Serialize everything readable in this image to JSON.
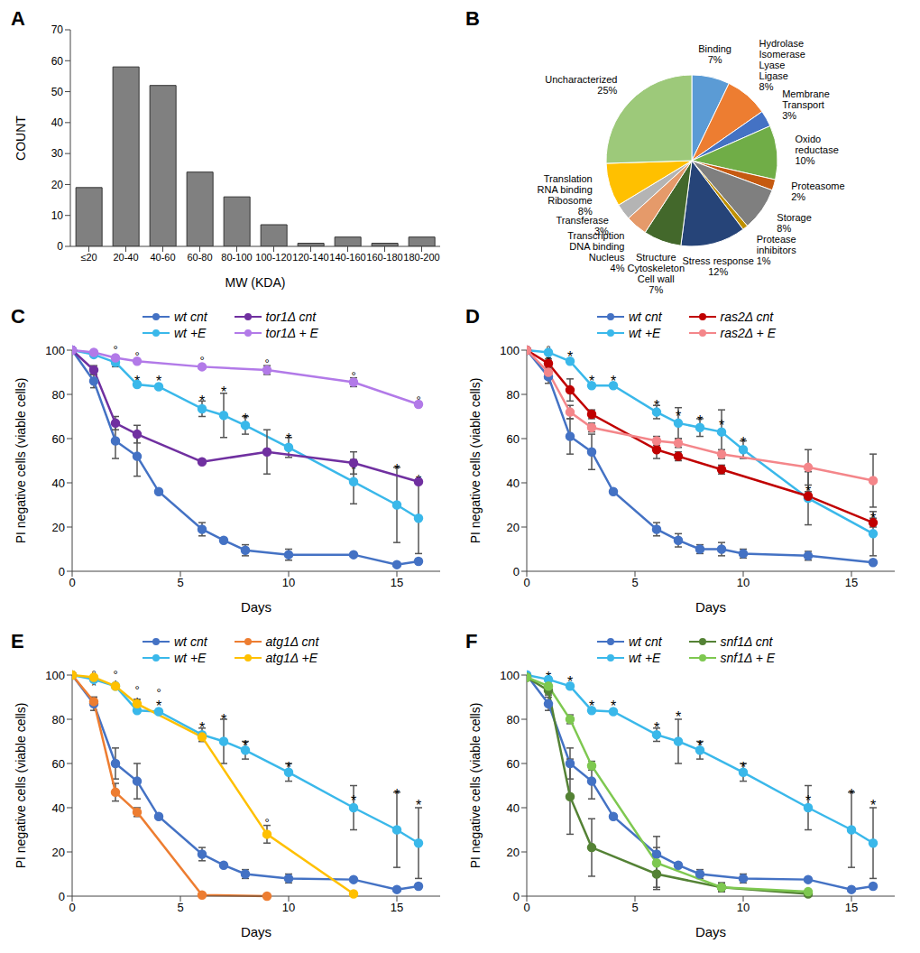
{
  "chart_data": [
    {
      "title": "A",
      "type": "bar",
      "xlabel": "MW (KDA)",
      "ylabel": "COUNT",
      "categories": [
        "≤20",
        "20-40",
        "40-60",
        "60-80",
        "80-100",
        "100-120",
        "120-140",
        "140-160",
        "160-180",
        "180-200"
      ],
      "values": [
        19,
        58,
        52,
        24,
        16,
        7,
        1,
        3,
        1,
        3
      ],
      "color": "#808080",
      "ylim": [
        0,
        70
      ],
      "yticks": [
        0,
        10,
        20,
        30,
        40,
        50,
        60,
        70
      ],
      "grid": false
    },
    {
      "title": "B",
      "type": "pie",
      "categories": [
        "Binding",
        "Hydrolase\nIsomerase\nLyase\nLigase",
        "Membrane\nTransport",
        "Oxido\nreductase",
        "Proteasome",
        "Storage",
        "Protease\ninhibitors",
        "Stress response",
        "Structure\nCytoskeleton\nCell wall",
        "Transcription\nDNA binding\nNucleus",
        "Transferase",
        "Translation\nRNA binding\nRibosome",
        "Uncharacterized"
      ],
      "values": [
        7,
        8,
        3,
        10,
        2,
        8,
        1,
        12,
        7,
        4,
        3,
        8,
        25
      ],
      "value_labels": [
        "7%",
        "8%",
        "3%",
        "10%",
        "2%",
        "8%",
        "1%",
        "12%",
        "7%",
        "4%",
        "3%",
        "8%",
        "25%"
      ],
      "colors": [
        "#5b9bd5",
        "#ed7d31",
        "#4472c4",
        "#70ad47",
        "#c55a11",
        "#7f7f7f",
        "#bf9000",
        "#264478",
        "#43682b",
        "#e59a6a",
        "#b4b4b4",
        "#ffc000",
        "#9dc97a"
      ],
      "data_labels": true
    },
    {
      "title": "C",
      "type": "line",
      "xlabel": "Days",
      "ylabel": "PI negative cells (viable cells)",
      "xlim": [
        0,
        17
      ],
      "xticks": [
        0,
        5,
        10,
        15
      ],
      "ylim": [
        0,
        100
      ],
      "yticks": [
        0,
        20,
        40,
        60,
        80,
        100
      ],
      "legend": "top",
      "marker": "circle",
      "series": [
        {
          "name": "wt cnt",
          "color": "#4472c4",
          "x": [
            0,
            1,
            2,
            3,
            4,
            6,
            7,
            8,
            10,
            13,
            15,
            16
          ],
          "values": [
            100,
            86,
            59,
            52,
            36,
            19,
            14,
            9.5,
            7.5,
            7.5,
            3,
            4.5
          ],
          "errors": [
            0,
            3,
            8,
            9,
            1,
            3,
            1,
            2.5,
            2.5,
            1,
            1,
            1
          ]
        },
        {
          "name": "wt +E",
          "color": "#3ab8ea",
          "x": [
            0,
            1,
            2,
            3,
            4,
            6,
            7,
            8,
            10,
            13,
            15,
            16
          ],
          "values": [
            100,
            98,
            94.5,
            84.5,
            83.5,
            73.5,
            70.5,
            66,
            56,
            40.5,
            30,
            24
          ],
          "errors": [
            0,
            1,
            2,
            1,
            1,
            3.5,
            10,
            4,
            4.5,
            10,
            17,
            16
          ]
        },
        {
          "name": "tor1Δ cnt",
          "color": "#7030a0",
          "x": [
            0,
            1,
            2,
            3,
            6,
            9,
            13,
            16
          ],
          "values": [
            100,
            91,
            67,
            62,
            49.5,
            54,
            49,
            40.5
          ],
          "errors": [
            0,
            2,
            3,
            4,
            1,
            10,
            5,
            1
          ]
        },
        {
          "name": "tor1Δ + E",
          "color": "#b27ae8",
          "x": [
            0,
            1,
            2,
            3,
            6,
            9,
            13,
            16
          ],
          "values": [
            100,
            99,
            96.5,
            95,
            92.5,
            91,
            85.5,
            75.5
          ],
          "errors": [
            0,
            1,
            1,
            1,
            1,
            2,
            2,
            1
          ]
        }
      ],
      "annotations": [
        {
          "x": 1,
          "y": 99,
          "text": "*"
        },
        {
          "x": 2,
          "y": 100,
          "text": "°"
        },
        {
          "x": 2,
          "y": 96,
          "text": "*"
        },
        {
          "x": 3,
          "y": 97,
          "text": "°"
        },
        {
          "x": 3,
          "y": 87,
          "text": "*"
        },
        {
          "x": 4,
          "y": 87,
          "text": "*"
        },
        {
          "x": 6,
          "y": 95,
          "text": "°"
        },
        {
          "x": 6,
          "y": 78,
          "text": "*"
        },
        {
          "x": 7,
          "y": 82,
          "text": "*"
        },
        {
          "x": 8,
          "y": 70,
          "text": "*"
        },
        {
          "x": 9,
          "y": 94,
          "text": "°"
        },
        {
          "x": 10,
          "y": 61,
          "text": "*"
        },
        {
          "x": 13,
          "y": 88,
          "text": "°"
        },
        {
          "x": 13,
          "y": 47,
          "text": "*"
        },
        {
          "x": 15,
          "y": 47,
          "text": "*"
        },
        {
          "x": 16,
          "y": 77,
          "text": "°"
        },
        {
          "x": 16,
          "y": 42,
          "text": "*"
        }
      ]
    },
    {
      "title": "D",
      "type": "line",
      "xlabel": "Days",
      "ylabel": "PI negative cells (viable cells)",
      "xlim": [
        0,
        17
      ],
      "xticks": [
        0,
        5,
        10,
        15
      ],
      "ylim": [
        0,
        100
      ],
      "yticks": [
        0,
        20,
        40,
        60,
        80,
        100
      ],
      "legend": "top",
      "marker": "circle",
      "series": [
        {
          "name": "wt cnt",
          "color": "#4472c4",
          "x": [
            0,
            1,
            2,
            3,
            4,
            6,
            7,
            8,
            9,
            10,
            13,
            16
          ],
          "values": [
            100,
            88,
            61,
            54,
            36,
            19,
            14,
            10,
            10,
            8,
            7,
            4
          ],
          "errors": [
            0,
            3,
            8,
            8,
            1,
            3,
            3,
            2,
            3,
            2,
            2,
            1
          ]
        },
        {
          "name": "wt +E",
          "color": "#3ab8ea",
          "x": [
            0,
            1,
            2,
            3,
            4,
            6,
            7,
            8,
            9,
            10,
            13,
            16
          ],
          "values": [
            100,
            99,
            95,
            84,
            84,
            72,
            67,
            65,
            63,
            55,
            33,
            17
          ],
          "errors": [
            0,
            1,
            1,
            1,
            1,
            3,
            7,
            4,
            10,
            4,
            12,
            10
          ]
        },
        {
          "name": "ras2Δ cnt",
          "color": "#c00000",
          "x": [
            0,
            1,
            2,
            3,
            6,
            7,
            9,
            13,
            16
          ],
          "values": [
            100,
            94,
            82,
            71,
            55,
            52,
            46,
            34,
            22
          ],
          "errors": [
            0,
            2,
            5,
            2,
            4,
            2,
            2,
            2,
            2
          ]
        },
        {
          "name": "ras2Δ + E",
          "color": "#f4868a",
          "x": [
            0,
            1,
            2,
            3,
            6,
            7,
            9,
            13,
            16
          ],
          "values": [
            100,
            90,
            72,
            65,
            59,
            58,
            53,
            47,
            41
          ],
          "errors": [
            0,
            2,
            3,
            2,
            2,
            2,
            2,
            8,
            12
          ]
        }
      ],
      "annotations": [
        {
          "x": 1,
          "y": 100,
          "text": "°"
        },
        {
          "x": 1,
          "y": 96,
          "text": "*"
        },
        {
          "x": 2,
          "y": 98,
          "text": "*"
        },
        {
          "x": 3,
          "y": 87,
          "text": "*"
        },
        {
          "x": 4,
          "y": 87,
          "text": "*"
        },
        {
          "x": 6,
          "y": 76,
          "text": "*"
        },
        {
          "x": 7,
          "y": 71,
          "text": "*"
        },
        {
          "x": 8,
          "y": 69,
          "text": "*"
        },
        {
          "x": 9,
          "y": 67,
          "text": "*"
        },
        {
          "x": 10,
          "y": 59,
          "text": "*"
        },
        {
          "x": 13,
          "y": 37,
          "text": "*"
        },
        {
          "x": 16,
          "y": 25,
          "text": "*"
        }
      ]
    },
    {
      "title": "E",
      "type": "line",
      "xlabel": "Days",
      "ylabel": "PI negative cells (viable cells)",
      "xlim": [
        0,
        17
      ],
      "xticks": [
        0,
        5,
        10,
        15
      ],
      "ylim": [
        0,
        100
      ],
      "yticks": [
        0,
        20,
        40,
        60,
        80,
        100
      ],
      "legend": "top",
      "marker": "circle",
      "series": [
        {
          "name": "wt cnt",
          "color": "#4472c4",
          "x": [
            0,
            1,
            2,
            3,
            4,
            6,
            7,
            8,
            10,
            13,
            15,
            16
          ],
          "values": [
            100,
            87,
            60,
            52,
            36,
            19,
            14,
            10,
            8,
            7.5,
            3,
            4.5
          ],
          "errors": [
            0,
            3,
            7,
            8,
            1,
            3,
            1,
            2,
            2,
            1,
            1,
            1
          ]
        },
        {
          "name": "wt +E",
          "color": "#3ab8ea",
          "x": [
            0,
            1,
            2,
            3,
            4,
            6,
            7,
            8,
            10,
            13,
            15,
            16
          ],
          "values": [
            100,
            98,
            95,
            84,
            83.5,
            73,
            70,
            66,
            56,
            40,
            30,
            24
          ],
          "errors": [
            0,
            1,
            1,
            1,
            1,
            3,
            10,
            4,
            4,
            10,
            17,
            16
          ]
        },
        {
          "name": "atg1Δ cnt",
          "color": "#ed7d31",
          "x": [
            0,
            1,
            2,
            3,
            6,
            9
          ],
          "values": [
            100,
            88,
            47,
            38,
            0.5,
            0
          ],
          "errors": [
            0,
            2,
            4,
            2,
            0,
            0
          ]
        },
        {
          "name": "atg1Δ +E",
          "color": "#ffc000",
          "x": [
            0,
            1,
            2,
            3,
            6,
            9,
            13
          ],
          "values": [
            100,
            99,
            95,
            87,
            72,
            28,
            1
          ],
          "errors": [
            0,
            1,
            1,
            2,
            2,
            4,
            1
          ]
        }
      ],
      "annotations": [
        {
          "x": 1,
          "y": 100,
          "text": "°"
        },
        {
          "x": 1,
          "y": 96,
          "text": "*"
        },
        {
          "x": 2,
          "y": 100,
          "text": "°"
        },
        {
          "x": 2,
          "y": 96,
          "text": "*"
        },
        {
          "x": 3,
          "y": 93,
          "text": "°"
        },
        {
          "x": 3,
          "y": 88,
          "text": "*"
        },
        {
          "x": 4,
          "y": 92,
          "text": "°"
        },
        {
          "x": 4,
          "y": 87,
          "text": "*"
        },
        {
          "x": 6,
          "y": 77,
          "text": "*"
        },
        {
          "x": 7,
          "y": 81,
          "text": "*"
        },
        {
          "x": 8,
          "y": 69,
          "text": "*"
        },
        {
          "x": 9,
          "y": 33,
          "text": "°"
        },
        {
          "x": 10,
          "y": 59,
          "text": "*"
        },
        {
          "x": 13,
          "y": 44,
          "text": "*"
        },
        {
          "x": 15,
          "y": 47,
          "text": "*"
        },
        {
          "x": 16,
          "y": 42,
          "text": "*"
        }
      ]
    },
    {
      "title": "F",
      "type": "line",
      "xlabel": "Days",
      "ylabel": "PI negative cells (viable cells)",
      "xlim": [
        0,
        17
      ],
      "xticks": [
        0,
        5,
        10,
        15
      ],
      "ylim": [
        0,
        100
      ],
      "yticks": [
        0,
        20,
        40,
        60,
        80,
        100
      ],
      "legend": "top",
      "marker": "circle",
      "series": [
        {
          "name": "wt cnt",
          "color": "#4472c4",
          "x": [
            0,
            1,
            2,
            3,
            4,
            6,
            7,
            8,
            10,
            13,
            15,
            16
          ],
          "values": [
            100,
            87,
            60,
            52,
            36,
            19,
            14,
            10,
            8,
            7.5,
            3,
            4.5
          ],
          "errors": [
            0,
            3,
            7,
            8,
            1,
            3,
            1,
            2,
            2,
            1,
            1,
            1
          ]
        },
        {
          "name": "wt +E",
          "color": "#3ab8ea",
          "x": [
            0,
            1,
            2,
            3,
            4,
            6,
            7,
            8,
            10,
            13,
            15,
            16
          ],
          "values": [
            100,
            98,
            95,
            84,
            83.5,
            73,
            70,
            66,
            56,
            40,
            30,
            24
          ],
          "errors": [
            0,
            1,
            1,
            1,
            1,
            3,
            10,
            4,
            4,
            10,
            17,
            16
          ]
        },
        {
          "name": "snf1Δ cnt",
          "color": "#548235",
          "x": [
            0,
            1,
            2,
            3,
            6,
            9,
            13
          ],
          "values": [
            99,
            93,
            45,
            22,
            10,
            4,
            1
          ],
          "errors": [
            0,
            2,
            17,
            13,
            6,
            2,
            0
          ]
        },
        {
          "name": "snf1Δ + E",
          "color": "#7ec850",
          "x": [
            0,
            1,
            2,
            3,
            6,
            9,
            13
          ],
          "values": [
            99,
            95,
            80,
            59,
            15,
            4,
            2
          ],
          "errors": [
            0,
            1,
            2,
            2,
            12,
            2,
            1
          ]
        }
      ],
      "annotations": [
        {
          "x": 1,
          "y": 100,
          "text": "*"
        },
        {
          "x": 2,
          "y": 98,
          "text": "*"
        },
        {
          "x": 3,
          "y": 87,
          "text": "*"
        },
        {
          "x": 4,
          "y": 87,
          "text": "*"
        },
        {
          "x": 6,
          "y": 77,
          "text": "*"
        },
        {
          "x": 7,
          "y": 82,
          "text": "*"
        },
        {
          "x": 8,
          "y": 69,
          "text": "*"
        },
        {
          "x": 10,
          "y": 59,
          "text": "*"
        },
        {
          "x": 13,
          "y": 44,
          "text": "*"
        },
        {
          "x": 15,
          "y": 47,
          "text": "*"
        },
        {
          "x": 16,
          "y": 42,
          "text": "*"
        }
      ]
    }
  ]
}
